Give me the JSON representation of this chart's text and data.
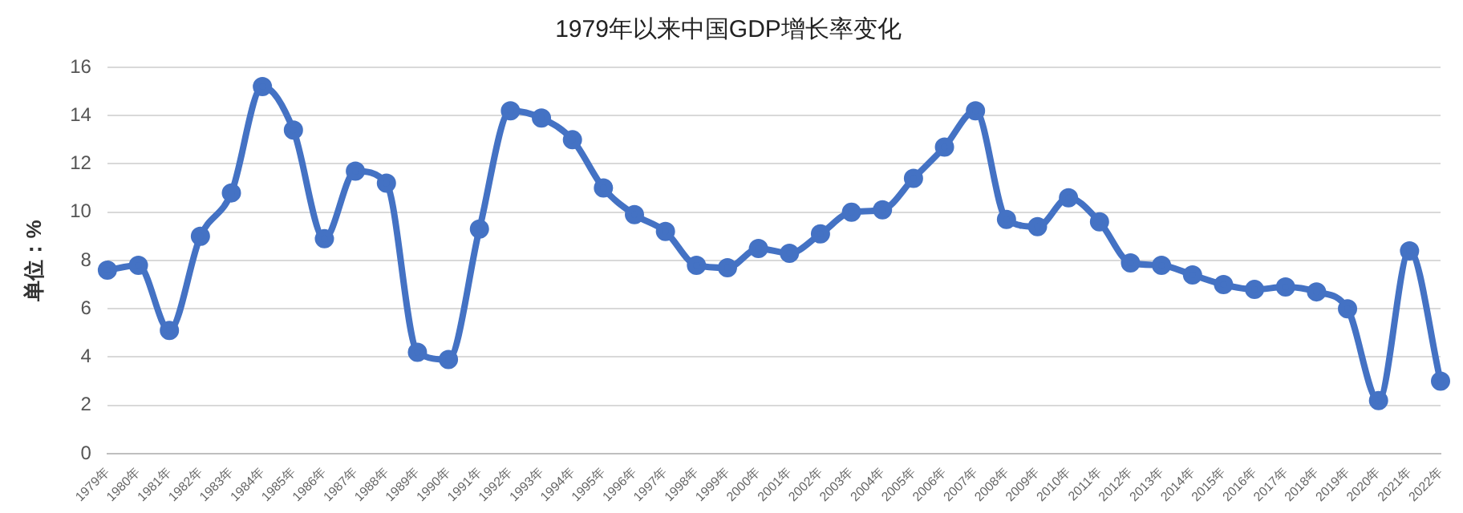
{
  "chart_data": {
    "type": "line",
    "title": "1979年以来中国GDP增长率变化",
    "ylabel": "单位：%",
    "categories": [
      "1979年",
      "1980年",
      "1981年",
      "1982年",
      "1983年",
      "1984年",
      "1985年",
      "1986年",
      "1987年",
      "1988年",
      "1989年",
      "1990年",
      "1991年",
      "1992年",
      "1993年",
      "1994年",
      "1995年",
      "1996年",
      "1997年",
      "1998年",
      "1999年",
      "2000年",
      "2001年",
      "2002年",
      "2003年",
      "2004年",
      "2005年",
      "2006年",
      "2007年",
      "2008年",
      "2009年",
      "2010年",
      "2011年",
      "2012年",
      "2013年",
      "2014年",
      "2015年",
      "2016年",
      "2017年",
      "2018年",
      "2019年",
      "2020年",
      "2021年",
      "2022年"
    ],
    "series": [
      {
        "color": "#4472c4",
        "values": [
          7.6,
          7.8,
          5.1,
          9.0,
          10.8,
          15.2,
          13.4,
          8.9,
          11.7,
          11.2,
          4.2,
          3.9,
          9.3,
          14.2,
          13.9,
          13.0,
          11.0,
          9.9,
          9.2,
          7.8,
          7.7,
          8.5,
          8.3,
          9.1,
          10.0,
          10.1,
          11.4,
          12.7,
          14.2,
          9.7,
          9.4,
          10.6,
          9.6,
          7.9,
          7.8,
          7.4,
          7.0,
          6.8,
          6.9,
          6.7,
          6.0,
          2.2,
          8.4,
          3.0
        ]
      }
    ],
    "ylim": [
      0,
      16
    ],
    "yticks": [
      0,
      2,
      4,
      6,
      8,
      10,
      12,
      14,
      16
    ],
    "grid": "y",
    "legend": false,
    "marker": "circle",
    "line_style": "solid"
  }
}
